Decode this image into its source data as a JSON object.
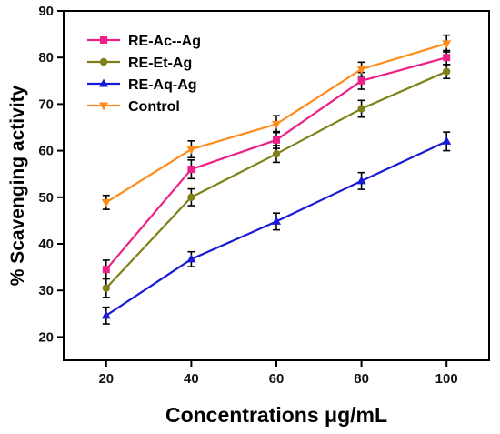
{
  "chart_data": {
    "type": "line",
    "title": "",
    "xlabel": "Concentrations μg/mL",
    "ylabel": "% Scavenging activity",
    "x": [
      20,
      40,
      60,
      80,
      100
    ],
    "xlim": [
      10,
      110
    ],
    "ylim": [
      15,
      90
    ],
    "xticks": [
      "20",
      "40",
      "60",
      "80",
      "100"
    ],
    "yticks": [
      "20",
      "30",
      "40",
      "50",
      "60",
      "70",
      "80",
      "90"
    ],
    "grid": false,
    "legend_position": "top-left",
    "series": [
      {
        "name": "RE-Ac--Ag",
        "color": "#ee1f86",
        "marker": "square",
        "values": [
          34.5,
          56,
          62.3,
          75,
          80
        ],
        "errors": [
          2.0,
          2.0,
          1.8,
          1.8,
          1.5
        ]
      },
      {
        "name": "RE-Et-Ag",
        "color": "#7f8118",
        "marker": "circle",
        "values": [
          30.5,
          50,
          59.3,
          69,
          77
        ],
        "errors": [
          2.0,
          1.8,
          1.8,
          1.8,
          1.5
        ]
      },
      {
        "name": "RE-Aq-Ag",
        "color": "#1a1ad6",
        "marker": "triangle-up",
        "values": [
          24.6,
          36.7,
          44.8,
          53.5,
          62
        ],
        "errors": [
          1.8,
          1.6,
          1.8,
          1.8,
          2.0
        ]
      },
      {
        "name": "Control",
        "color": "#ff8c1a",
        "marker": "triangle-down",
        "values": [
          48.9,
          60.3,
          65.7,
          77.5,
          83
        ],
        "errors": [
          1.5,
          1.8,
          1.8,
          1.5,
          1.8
        ]
      }
    ]
  }
}
